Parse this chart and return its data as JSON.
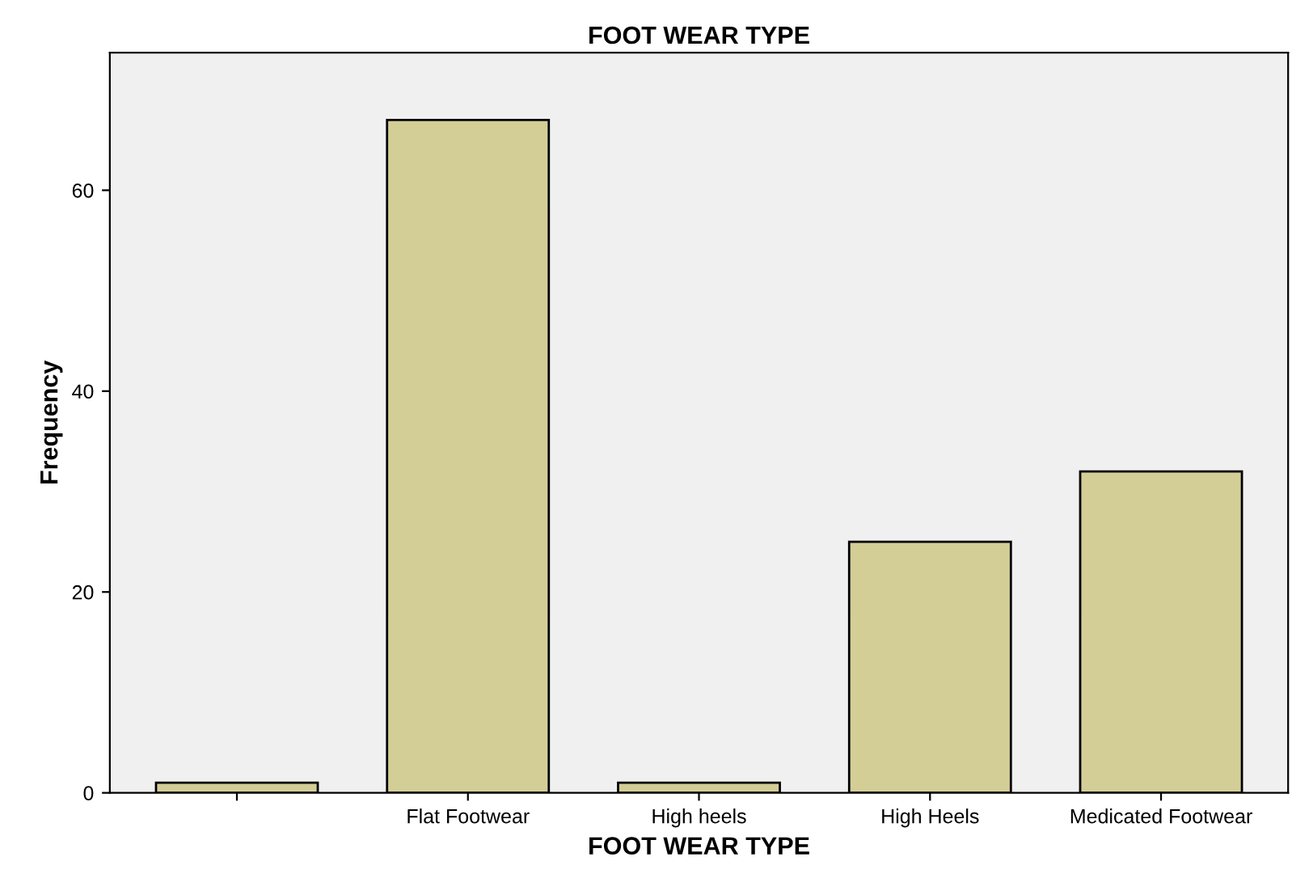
{
  "chart_data": {
    "type": "bar",
    "title": "FOOT WEAR TYPE",
    "xlabel": "FOOT WEAR TYPE",
    "ylabel": "Frequency",
    "categories": [
      null,
      "Flat Footwear",
      "High heels",
      "High Heels",
      "Medicated Footwear"
    ],
    "values": [
      1,
      67,
      1,
      25,
      32
    ],
    "color": "#d3ce96",
    "ylim": [
      0,
      73.7
    ],
    "yticks": [
      0,
      20,
      40,
      60
    ],
    "grid": false,
    "legend": false
  }
}
